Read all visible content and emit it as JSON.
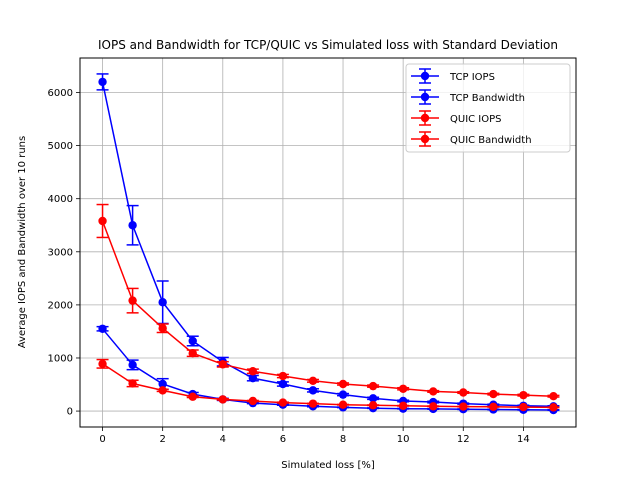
{
  "chart_data": {
    "type": "line",
    "title": "IOPS and Bandwidth for TCP/QUIC vs Simulated loss with Standard Deviation",
    "xlabel": "Simulated loss [%]",
    "ylabel": "Average IOPS and Bandwidth over 10 runs",
    "xlim": [
      -0.75,
      15.75
    ],
    "ylim": [
      -300,
      6650
    ],
    "xticks": [
      0,
      2,
      4,
      6,
      8,
      10,
      12,
      14
    ],
    "yticks": [
      0,
      1000,
      2000,
      3000,
      4000,
      5000,
      6000
    ],
    "grid": true,
    "legend_position": "top-right",
    "x": [
      0,
      1,
      2,
      3,
      4,
      5,
      6,
      7,
      8,
      9,
      10,
      11,
      12,
      13,
      14,
      15
    ],
    "series": [
      {
        "name": "TCP IOPS",
        "color": "#0000ff",
        "values": [
          6200,
          3500,
          2050,
          1320,
          930,
          620,
          510,
          390,
          310,
          240,
          190,
          170,
          140,
          120,
          100,
          90
        ],
        "errors": [
          150,
          370,
          400,
          90,
          80,
          50,
          40,
          30,
          20,
          20,
          15,
          15,
          10,
          10,
          10,
          10
        ]
      },
      {
        "name": "TCP Bandwidth",
        "color": "#0000ff",
        "values": [
          1550,
          870,
          510,
          320,
          220,
          150,
          120,
          90,
          70,
          55,
          45,
          40,
          35,
          30,
          25,
          20
        ],
        "errors": [
          40,
          90,
          100,
          30,
          20,
          10,
          10,
          10,
          5,
          5,
          5,
          5,
          5,
          5,
          5,
          5
        ]
      },
      {
        "name": "QUIC IOPS",
        "color": "#ff0000",
        "values": [
          3580,
          2080,
          1560,
          1090,
          880,
          750,
          660,
          570,
          510,
          470,
          420,
          370,
          350,
          320,
          300,
          280
        ],
        "errors": [
          310,
          230,
          80,
          60,
          50,
          40,
          30,
          25,
          20,
          20,
          20,
          15,
          15,
          15,
          15,
          15
        ]
      },
      {
        "name": "QUIC Bandwidth",
        "color": "#ff0000",
        "values": [
          890,
          520,
          390,
          270,
          220,
          190,
          160,
          140,
          120,
          110,
          100,
          90,
          85,
          80,
          75,
          70
        ],
        "errors": [
          80,
          60,
          20,
          15,
          12,
          10,
          8,
          6,
          5,
          5,
          5,
          5,
          5,
          5,
          5,
          5
        ]
      }
    ]
  }
}
